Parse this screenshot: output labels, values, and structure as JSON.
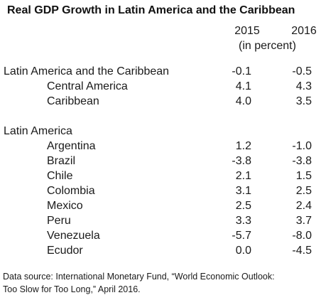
{
  "title": "Real GDP Growth in Latin America and the Caribbean",
  "columns": {
    "year_a": "2015",
    "year_b": "2016",
    "unit": "(in percent)"
  },
  "rows": [
    {
      "label": "Latin America and the Caribbean",
      "v2015": "-0.1",
      "v2016": "-0.5"
    },
    {
      "label": "Central America",
      "v2015": "4.1",
      "v2016": "4.3"
    },
    {
      "label": "Caribbean",
      "v2015": "4.0",
      "v2016": "3.5"
    },
    {
      "label": "Latin America",
      "v2015": "",
      "v2016": ""
    },
    {
      "label": "Argentina",
      "v2015": "1.2",
      "v2016": "-1.0"
    },
    {
      "label": "Brazil",
      "v2015": "-3.8",
      "v2016": "-3.8"
    },
    {
      "label": "Chile",
      "v2015": "2.1",
      "v2016": "1.5"
    },
    {
      "label": "Colombia",
      "v2015": "3.1",
      "v2016": "2.5"
    },
    {
      "label": "Mexico",
      "v2015": "2.5",
      "v2016": "2.4"
    },
    {
      "label": "Peru",
      "v2015": "3.3",
      "v2016": "3.7"
    },
    {
      "label": "Venezuela",
      "v2015": "-5.7",
      "v2016": "-8.0"
    },
    {
      "label": "Ecudor",
      "v2015": "0.0",
      "v2016": "-4.5"
    }
  ],
  "footnote": {
    "line1": "Data source: International Monetary Fund, “World Economic Outlook:",
    "line2": "Too Slow for Too Long,” April 2016."
  }
}
